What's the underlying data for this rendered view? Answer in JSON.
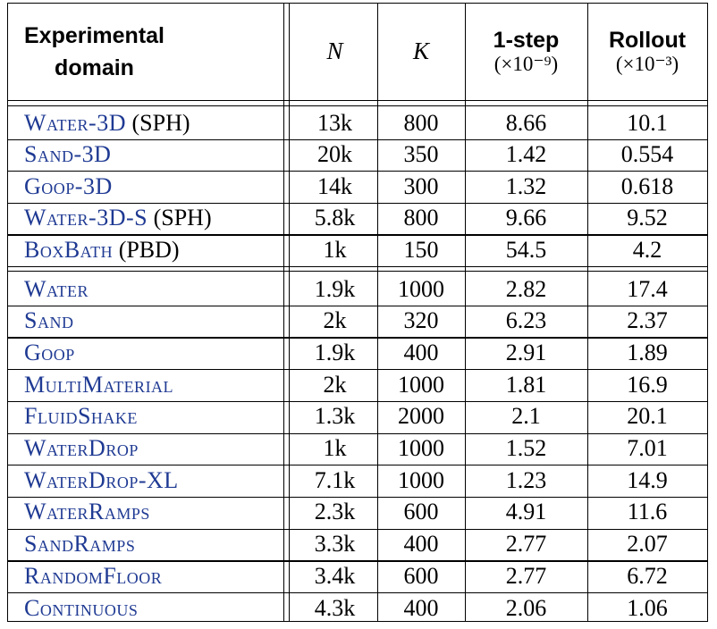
{
  "table": {
    "header": {
      "domain_line1": "Experimental",
      "domain_line2": "domain",
      "n": "N",
      "k": "K",
      "onestep_label": "1-step",
      "onestep_unit": "(×10⁻⁹)",
      "rollout_label": "Rollout",
      "rollout_unit": "(×10⁻³)"
    },
    "group1": [
      {
        "domain": "Water-3D",
        "suffix": " (SPH)",
        "n": "13k",
        "k": "800",
        "onestep": "8.66",
        "rollout": "10.1"
      },
      {
        "domain": "Sand-3D",
        "suffix": "",
        "n": "20k",
        "k": "350",
        "onestep": "1.42",
        "rollout": "0.554"
      },
      {
        "domain": "Goop-3D",
        "suffix": "",
        "n": "14k",
        "k": "300",
        "onestep": "1.32",
        "rollout": "0.618"
      },
      {
        "domain": "Water-3D-S",
        "suffix": " (SPH)",
        "n": "5.8k",
        "k": "800",
        "onestep": "9.66",
        "rollout": "9.52"
      },
      {
        "domain": "BoxBath",
        "suffix": " (PBD)",
        "n": "1k",
        "k": "150",
        "onestep": "54.5",
        "rollout": "4.2"
      }
    ],
    "group2": [
      {
        "domain": "Water",
        "suffix": "",
        "n": "1.9k",
        "k": "1000",
        "onestep": "2.82",
        "rollout": "17.4"
      },
      {
        "domain": "Sand",
        "suffix": "",
        "n": "2k",
        "k": "320",
        "onestep": "6.23",
        "rollout": "2.37"
      },
      {
        "domain": "Goop",
        "suffix": "",
        "n": "1.9k",
        "k": "400",
        "onestep": "2.91",
        "rollout": "1.89"
      },
      {
        "domain": "MultiMaterial",
        "suffix": "",
        "n": "2k",
        "k": "1000",
        "onestep": "1.81",
        "rollout": "16.9"
      },
      {
        "domain": "FluidShake",
        "suffix": "",
        "n": "1.3k",
        "k": "2000",
        "onestep": "2.1",
        "rollout": "20.1"
      },
      {
        "domain": "WaterDrop",
        "suffix": "",
        "n": "1k",
        "k": "1000",
        "onestep": "1.52",
        "rollout": "7.01"
      },
      {
        "domain": "WaterDrop-XL",
        "suffix": "",
        "n": "7.1k",
        "k": "1000",
        "onestep": "1.23",
        "rollout": "14.9"
      },
      {
        "domain": "WaterRamps",
        "suffix": "",
        "n": "2.3k",
        "k": "600",
        "onestep": "4.91",
        "rollout": "11.6"
      },
      {
        "domain": "SandRamps",
        "suffix": "",
        "n": "3.3k",
        "k": "400",
        "onestep": "2.77",
        "rollout": "2.07"
      },
      {
        "domain": "RandomFloor",
        "suffix": "",
        "n": "3.4k",
        "k": "600",
        "onestep": "2.77",
        "rollout": "6.72"
      },
      {
        "domain": "Continuous",
        "suffix": "",
        "n": "4.3k",
        "k": "400",
        "onestep": "2.06",
        "rollout": "1.06"
      }
    ]
  }
}
